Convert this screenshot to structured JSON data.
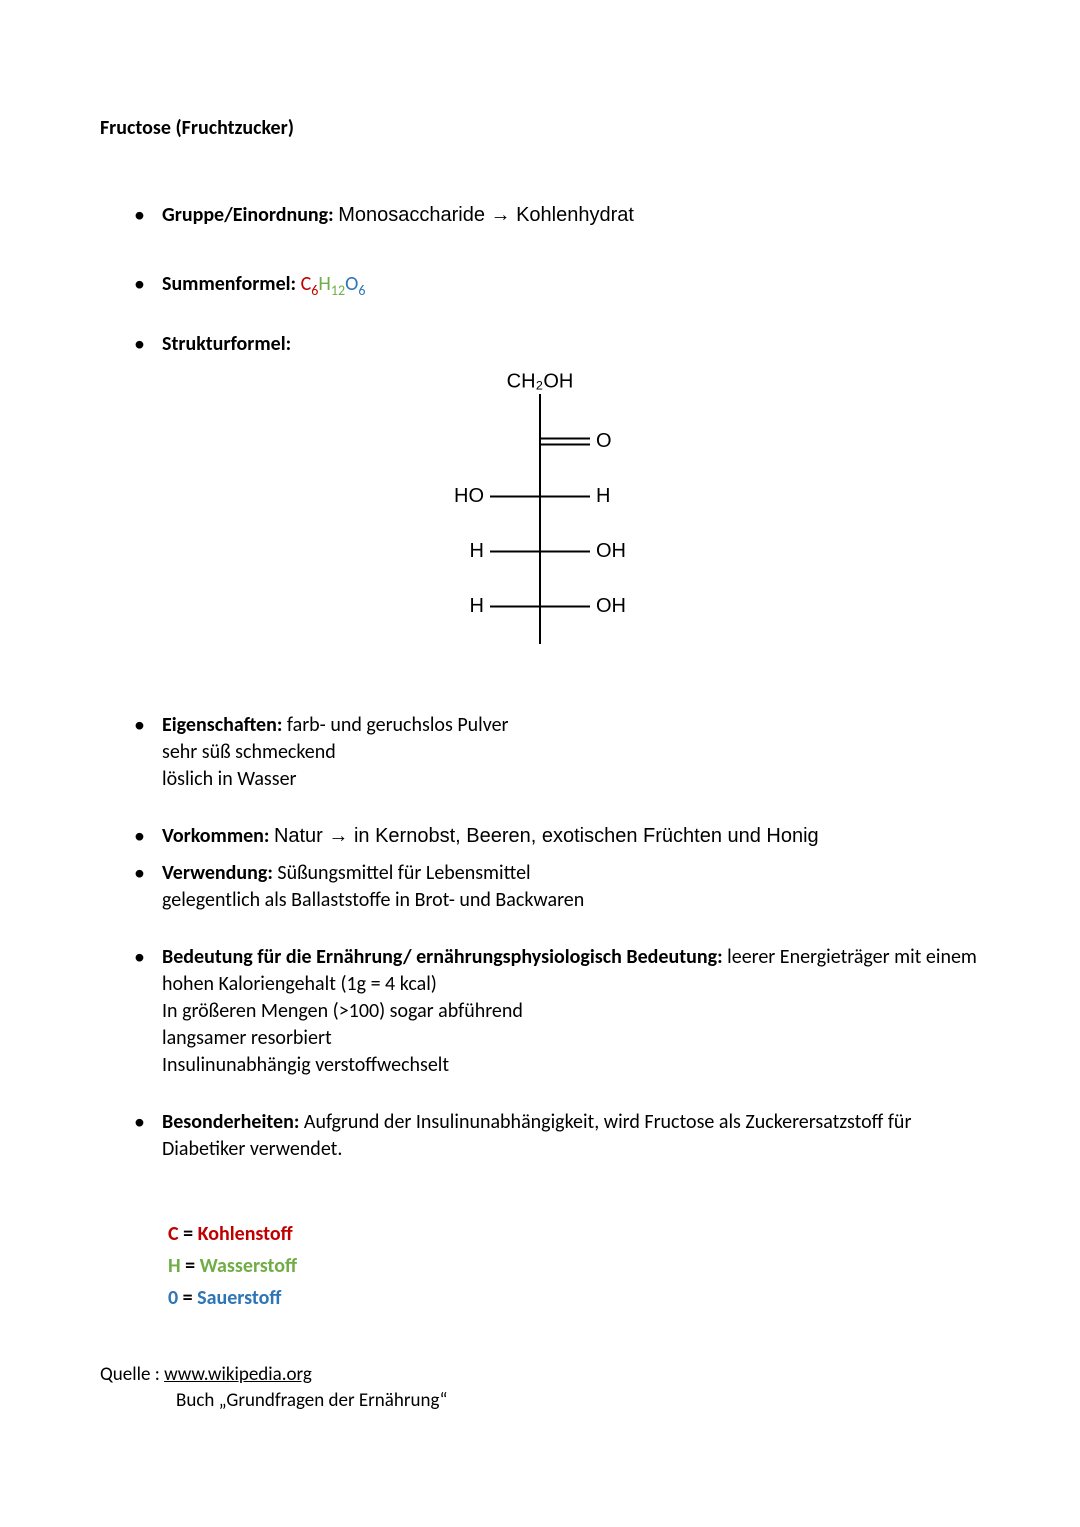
{
  "title": "Fructose (Fruchtzucker)",
  "items": {
    "gruppe": {
      "label": "Gruppe/Einordnung:",
      "value": "Monosaccharide → Kohlenhydrat"
    },
    "summen": {
      "label": "Summenformel:",
      "parts": {
        "c": "C",
        "c_sub": "6",
        "h": "H",
        "h_sub": "12",
        "o": "O",
        "o_sub": "6"
      }
    },
    "struktur": {
      "label": "Strukturformel:"
    },
    "eigenschaften": {
      "label": "Eigenschaften:",
      "line1": "farb- und geruchslos Pulver",
      "line2": "sehr süß schmeckend",
      "line3": "löslich in Wasser"
    },
    "vorkommen": {
      "label": "Vorkommen:",
      "value": "Natur → in Kernobst, Beeren, exotischen Früchten und Honig"
    },
    "verwendung": {
      "label": "Verwendung:",
      "line1": "Süßungsmittel für Lebensmittel",
      "line2": "gelegentlich als Ballaststoffe in Brot- und Backwaren"
    },
    "bedeutung": {
      "label": "Bedeutung für die Ernährung/ ernährungsphysiologisch Bedeutung:",
      "line1": "leerer Energieträger mit einem hohen Kaloriengehalt (1g = 4 kcal)",
      "line2": "In größeren Mengen (>100) sogar abführend",
      "line3": "langsamer resorbiert",
      "line4": "Insulinunabhängig verstoffwechselt"
    },
    "besonderheiten": {
      "label": "Besonderheiten:",
      "value": "Aufgrund der Insulinunabhängigkeit, wird Fructose als Zuckerersatzstoff für Diabetiker verwendet."
    }
  },
  "structure_diagram": {
    "type": "fischer_projection",
    "top_label": "CH₂OH",
    "rows": [
      {
        "left": "",
        "right": "O",
        "double_right": true
      },
      {
        "left": "HO",
        "right": "H",
        "double_right": false
      },
      {
        "left": "H",
        "right": "OH",
        "double_right": false
      },
      {
        "left": "H",
        "right": "OH",
        "double_right": false
      }
    ],
    "colors": {
      "line": "#000000",
      "text": "#000000",
      "background": "#ffffff"
    },
    "line_width": 2,
    "font_family": "Arial",
    "font_size": 20
  },
  "legend": {
    "c": {
      "sym": "C",
      "eq": " = ",
      "word": "Kohlenstoff"
    },
    "h": {
      "sym": "H",
      "eq": " = ",
      "word": "Wasserstoff"
    },
    "o": {
      "sym": "0",
      "eq": " = ",
      "word": "Sauerstoff"
    }
  },
  "source": {
    "label": "Quelle :",
    "link": "www.wikipedia.org",
    "book": "Buch „Grundfragen der Ernährung“"
  }
}
